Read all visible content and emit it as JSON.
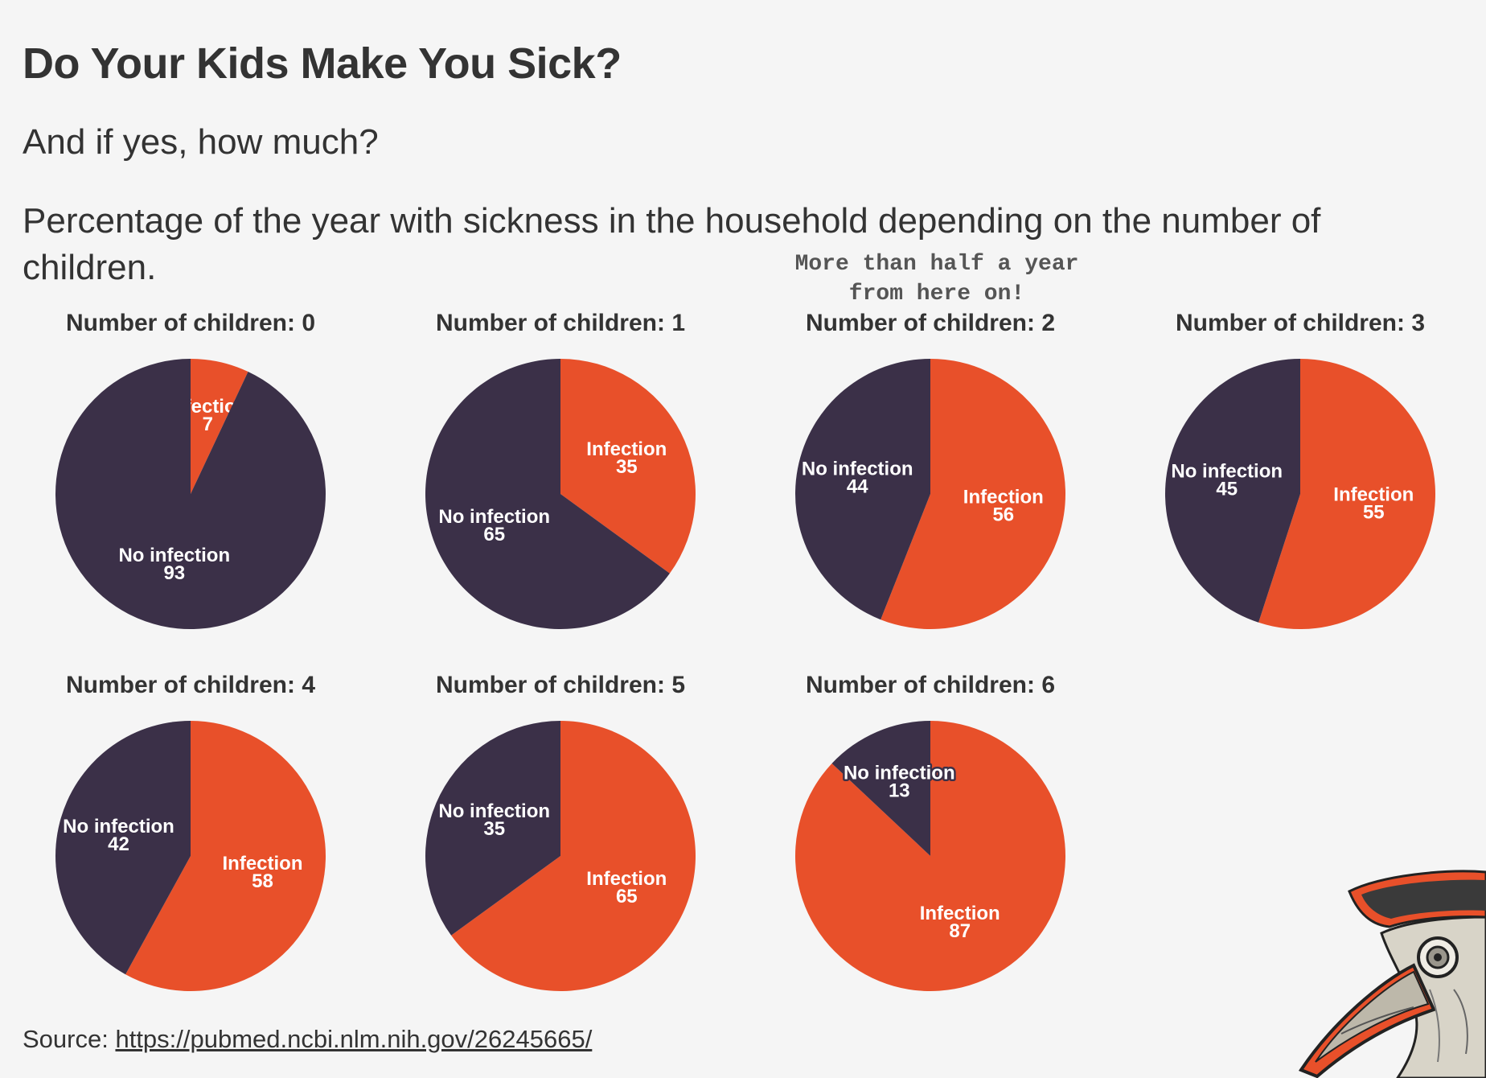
{
  "title": "Do Your Kids Make You Sick?",
  "subtitle": "And if yes, how much?",
  "description": "Percentage of the year with sickness in the household depending on the number of children.",
  "annotation": "More than half a year from here on!",
  "source": {
    "prefix": "Source:",
    "link_text": "https://pubmed.ncbi.nlm.nih.gov/26245665/"
  },
  "colors": {
    "infection": "#e8502a",
    "no_infection": "#3b3048",
    "background": "#f5f5f5",
    "text": "#333333"
  },
  "mascot": {
    "icon": "plague-doctor-mask-icon"
  },
  "chart_data": [
    {
      "type": "pie",
      "title": "Number of children: 0",
      "labels": [
        "Infection",
        "No infection"
      ],
      "values": [
        7,
        93
      ]
    },
    {
      "type": "pie",
      "title": "Number of children: 1",
      "labels": [
        "Infection",
        "No infection"
      ],
      "values": [
        35,
        65
      ]
    },
    {
      "type": "pie",
      "title": "Number of children: 2",
      "labels": [
        "Infection",
        "No infection"
      ],
      "values": [
        56,
        44
      ]
    },
    {
      "type": "pie",
      "title": "Number of children: 3",
      "labels": [
        "Infection",
        "No infection"
      ],
      "values": [
        55,
        45
      ]
    },
    {
      "type": "pie",
      "title": "Number of children: 4",
      "labels": [
        "Infection",
        "No infection"
      ],
      "values": [
        58,
        42
      ]
    },
    {
      "type": "pie",
      "title": "Number of children: 5",
      "labels": [
        "Infection",
        "No infection"
      ],
      "values": [
        65,
        35
      ]
    },
    {
      "type": "pie",
      "title": "Number of children: 6",
      "labels": [
        "Infection",
        "No infection"
      ],
      "values": [
        87,
        13
      ]
    }
  ]
}
